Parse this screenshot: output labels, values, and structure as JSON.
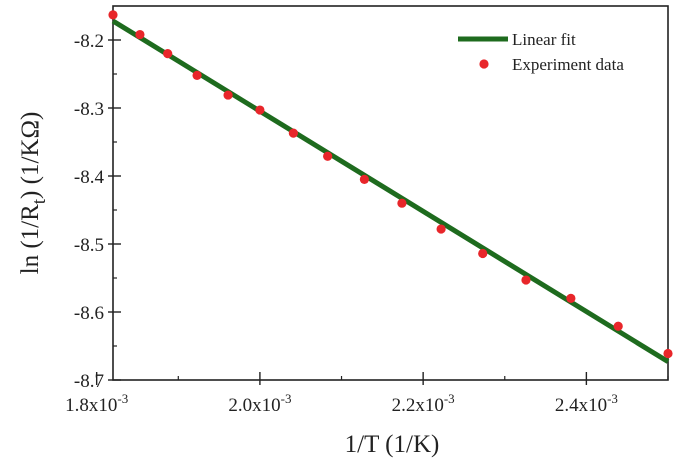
{
  "chart_data": {
    "type": "scatter",
    "xlabel": "1/T (1/K)",
    "ylabel": {
      "prefix": "ln (1/R",
      "subscript": "t",
      "suffix": ") (1/KΩ)"
    },
    "xlim": [
      0.00182,
      0.0025
    ],
    "ylim": [
      -8.7,
      -8.15
    ],
    "x_ticks": [
      {
        "value": 0.0018,
        "mantissa": "1.8x10",
        "exponent": "-3"
      },
      {
        "value": 0.002,
        "mantissa": "2.0x10",
        "exponent": "-3"
      },
      {
        "value": 0.0022,
        "mantissa": "2.2x10",
        "exponent": "-3"
      },
      {
        "value": 0.0024,
        "mantissa": "2.4x10",
        "exponent": "-3"
      }
    ],
    "y_ticks": [
      {
        "value": -8.2,
        "label": "-8.2"
      },
      {
        "value": -8.3,
        "label": "-8.3"
      },
      {
        "value": -8.4,
        "label": "-8.4"
      },
      {
        "value": -8.5,
        "label": "-8.5"
      },
      {
        "value": -8.6,
        "label": "-8.6"
      },
      {
        "value": -8.7,
        "label": "-8.7"
      }
    ],
    "grid": false,
    "legend_position": "top-right",
    "series": [
      {
        "name": "Linear fit",
        "kind": "line",
        "color": "#1e6b1e",
        "x": [
          0.00182,
          0.0025
        ],
        "y": [
          -8.172,
          -8.673
        ]
      },
      {
        "name": "Experiment data",
        "kind": "scatter",
        "color": "#e8262a",
        "x": [
          0.00182,
          0.001853,
          0.001887,
          0.001923,
          0.001961,
          0.002,
          0.002041,
          0.002083,
          0.002128,
          0.002174,
          0.002222,
          0.002273,
          0.002326,
          0.002381,
          0.002439,
          0.0025
        ],
        "y": [
          -8.163,
          -8.192,
          -8.22,
          -8.252,
          -8.281,
          -8.303,
          -8.337,
          -8.371,
          -8.405,
          -8.44,
          -8.478,
          -8.514,
          -8.553,
          -8.58,
          -8.621,
          -8.661
        ]
      }
    ]
  }
}
